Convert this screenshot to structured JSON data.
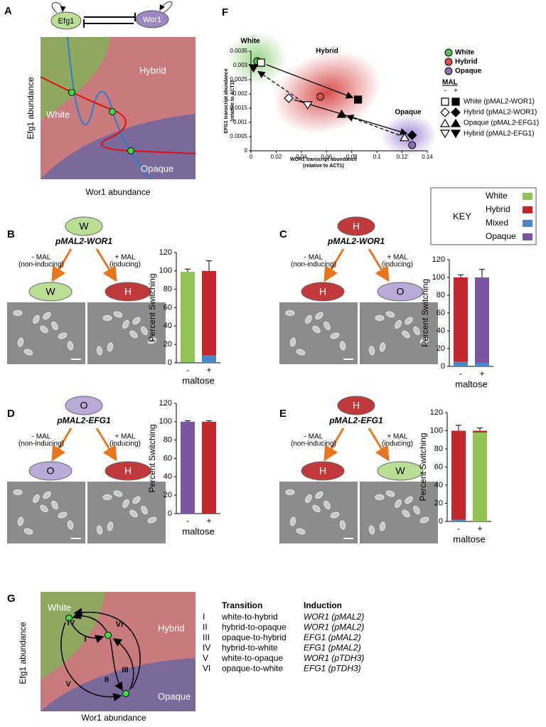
{
  "figure": {
    "A": {
      "label": "A",
      "genes": [
        "Efg1",
        "Wor1"
      ],
      "states": [
        "White",
        "Hybrid",
        "Opaque"
      ],
      "y_label": "Efg1 abundance",
      "x_label": "Wor1 abundance"
    },
    "B": {
      "label": "B",
      "start": {
        "text": "W",
        "color": "#b9de94"
      },
      "construct": "pMAL2-WOR1",
      "left_arrow": [
        "- MAL",
        "(non-inducing)"
      ],
      "right_arrow": [
        "+ MAL",
        "(inducing)"
      ],
      "left_result": {
        "text": "W",
        "color": "#b9de94"
      },
      "right_result": {
        "text": "H",
        "color": "#c0393b"
      }
    },
    "C": {
      "label": "C",
      "start": {
        "text": "H",
        "color": "#c0393b"
      },
      "construct": "pMAL2-WOR1",
      "left_arrow": [
        "- MAL",
        "(non-inducing)"
      ],
      "right_arrow": [
        "+ MAL",
        "(inducing)"
      ],
      "left_result": {
        "text": "H",
        "color": "#c0393b"
      },
      "right_result": {
        "text": "O",
        "color": "#bba9da"
      }
    },
    "D": {
      "label": "D",
      "start": {
        "text": "O",
        "color": "#bba9da"
      },
      "construct": "pMAL2-EFG1",
      "left_arrow": [
        "- MAL",
        "(non-inducing)"
      ],
      "right_arrow": [
        "+ MAL",
        "(inducing)"
      ],
      "left_result": {
        "text": "O",
        "color": "#bba9da"
      },
      "right_result": {
        "text": "H",
        "color": "#c0393b"
      }
    },
    "E": {
      "label": "E",
      "start": {
        "text": "H",
        "color": "#c0393b"
      },
      "construct": "pMAL2-EFG1",
      "left_arrow": [
        "- MAL",
        "(non-inducing)"
      ],
      "right_arrow": [
        "+ MAL",
        "(inducing)"
      ],
      "left_result": {
        "text": "H",
        "color": "#c0393b"
      },
      "right_result": {
        "text": "W",
        "color": "#b9de94"
      }
    },
    "F": {
      "label": "F"
    },
    "G": {
      "label": "G",
      "states": [
        "White",
        "Hybrid",
        "Opaque"
      ],
      "y_label": "Efg1 abundance",
      "x_label": "Wor1 abundance",
      "numerals": [
        "I",
        "II",
        "III",
        "IV",
        "V",
        "VI"
      ],
      "table": {
        "header": [
          "Transition",
          "Induction"
        ],
        "rows": [
          [
            "I",
            "white-to-hybrid",
            "WOR1 (pMAL2)"
          ],
          [
            "II",
            "hybrid-to-opaque",
            "WOR1 (pMAL2)"
          ],
          [
            "III",
            "opaque-to-hybrid",
            "EFG1 (pMAL2)"
          ],
          [
            "IV",
            "hybrid-to-white",
            "EFG1 (pMAL2)"
          ],
          [
            "V",
            "white-to-opaque",
            "WOR1 (pTDH3)"
          ],
          [
            "VI",
            "opaque-to-white",
            "EFG1 (pTDH3)"
          ]
        ]
      }
    }
  },
  "chart_data": [
    {
      "type": "scatter",
      "x_label": [
        "WOR1 transcript abundance",
        "(relative to ACT1)"
      ],
      "y_label": [
        "EFG1 transcript abundance",
        "(relative to ACT1)"
      ],
      "xlim": [
        0,
        0.14
      ],
      "xticks": [
        0,
        0.02,
        0.04,
        0.06,
        0.08,
        0.1,
        0.12,
        0.14
      ],
      "ylim": [
        0,
        0.0035
      ],
      "yticks": [
        0,
        0.0005,
        0.001,
        0.0015,
        0.002,
        0.0025,
        0.003,
        0.0035
      ],
      "legend_title": "MAL",
      "conditions": [
        "-",
        "+"
      ],
      "series": [
        {
          "name": "White",
          "marker": "circle",
          "color": "#5cb85c",
          "x": [
            0.005
          ],
          "values": [
            0.00315
          ]
        },
        {
          "name": "Hybrid",
          "marker": "circle",
          "color": "#d9534f",
          "x": [
            0.055
          ],
          "values": [
            0.0019
          ]
        },
        {
          "name": "Opaque",
          "marker": "circle",
          "color": "#8e6fb0",
          "x": [
            0.128
          ],
          "values": [
            0.0002
          ]
        },
        {
          "name": "White (pMAL2-WOR1)",
          "marker": "square",
          "color": "#000000",
          "line_style": "solid",
          "x": [
            0.008,
            0.085
          ],
          "values": [
            0.0031,
            0.0018
          ]
        },
        {
          "name": "Hybrid (pMAL2-WOR1)",
          "marker": "diamond",
          "color": "#000000",
          "line_style": "solid",
          "x": [
            0.03,
            0.128
          ],
          "values": [
            0.00185,
            0.00055
          ]
        },
        {
          "name": "Opaque (pMAL2-EFG1)",
          "marker": "triangle",
          "color": "#000000",
          "line_style": "dashed",
          "x": [
            0.122,
            0.072
          ],
          "values": [
            0.00048,
            0.0013
          ]
        },
        {
          "name": "Hybrid (pMAL2-EFG1)",
          "marker": "triangle-down",
          "color": "#000000",
          "line_style": "dashed",
          "x": [
            0.045,
            0.002
          ],
          "values": [
            0.0016,
            0.0029
          ]
        }
      ]
    },
    {
      "type": "stacked-bar",
      "categories": [
        "-",
        "+"
      ],
      "ylim": [
        0,
        120
      ],
      "yticks": [
        0,
        20,
        40,
        60,
        80,
        100,
        120
      ],
      "y_label": "Percent Switching",
      "x_label": "maltose",
      "series": [
        {
          "color": "#4a86c8",
          "values": [
            1,
            8
          ],
          "errors": [
            2,
            10
          ]
        },
        {
          "color": "#92c353",
          "values": [
            98,
            0
          ],
          "errors": [
            3,
            null
          ]
        },
        {
          "color": "#c1272d",
          "values": [
            0,
            92
          ],
          "errors": [
            null,
            11
          ]
        },
        {
          "color": "#7b559f",
          "values": [
            0,
            0
          ],
          "errors": [
            null,
            null
          ]
        }
      ]
    },
    {
      "type": "stacked-bar",
      "categories": [
        "-",
        "+"
      ],
      "ylim": [
        0,
        120
      ],
      "yticks": [
        0,
        20,
        40,
        60,
        80,
        100,
        120
      ],
      "y_label": "Percent Switching",
      "x_label": "maltose",
      "legend_title": "KEY",
      "series": [
        {
          "name": "Mixed",
          "color": "#4a86c8",
          "values": [
            5,
            4
          ],
          "errors": [
            3,
            8
          ]
        },
        {
          "name": "White",
          "color": "#92c353",
          "values": [
            0,
            0
          ],
          "errors": [
            null,
            null
          ]
        },
        {
          "name": "Hybrid",
          "color": "#c1272d",
          "values": [
            95,
            0
          ],
          "errors": [
            3,
            null
          ]
        },
        {
          "name": "Opaque",
          "color": "#7b559f",
          "values": [
            0,
            96
          ],
          "errors": [
            null,
            9
          ]
        }
      ]
    },
    {
      "type": "stacked-bar",
      "categories": [
        "-",
        "+"
      ],
      "ylim": [
        0,
        120
      ],
      "yticks": [
        0,
        20,
        40,
        60,
        80,
        100,
        120
      ],
      "y_label": "Percent Switching",
      "x_label": "maltose",
      "series": [
        {
          "color": "#4a86c8",
          "values": [
            0,
            0
          ],
          "errors": [
            null,
            null
          ]
        },
        {
          "color": "#92c353",
          "values": [
            0,
            0
          ],
          "errors": [
            null,
            null
          ]
        },
        {
          "color": "#c1272d",
          "values": [
            0,
            100
          ],
          "errors": [
            null,
            1
          ]
        },
        {
          "color": "#7b559f",
          "values": [
            100,
            0
          ],
          "errors": [
            1,
            null
          ]
        }
      ]
    },
    {
      "type": "stacked-bar",
      "categories": [
        "-",
        "+"
      ],
      "ylim": [
        0,
        120
      ],
      "yticks": [
        0,
        20,
        40,
        60,
        80,
        100,
        120
      ],
      "y_label": "Percent Switching",
      "x_label": "maltose",
      "series": [
        {
          "color": "#4a86c8",
          "values": [
            2,
            0
          ],
          "errors": [
            5,
            null
          ]
        },
        {
          "color": "#92c353",
          "values": [
            0,
            98
          ],
          "errors": [
            null,
            null
          ]
        },
        {
          "color": "#c1272d",
          "values": [
            98,
            2
          ],
          "errors": [
            6,
            3
          ]
        },
        {
          "color": "#7b559f",
          "values": [
            0,
            0
          ],
          "errors": [
            null,
            null
          ]
        }
      ]
    }
  ]
}
